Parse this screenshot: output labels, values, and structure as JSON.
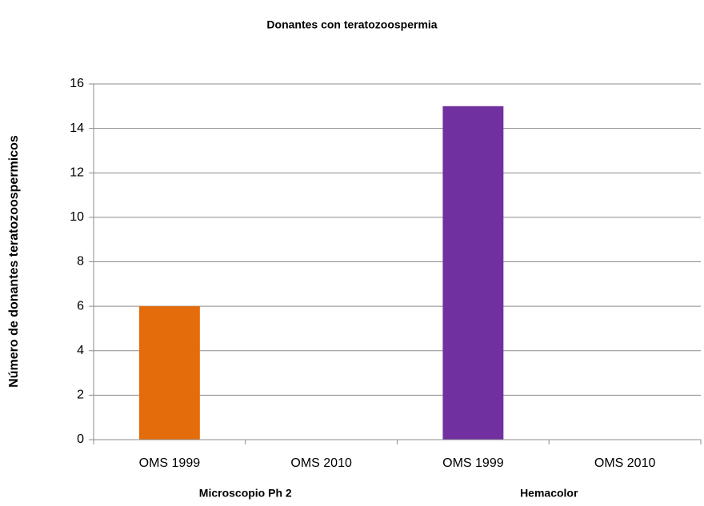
{
  "chart_data": {
    "type": "bar",
    "title": "Donantes con teratozoospermia",
    "y_label": "Número de donantes teratozoospermicos",
    "categories": [
      "OMS 1999",
      "OMS 2010",
      "OMS 1999",
      "OMS 2010"
    ],
    "groups": [
      "Microscopio Ph 2",
      "Hemacolor"
    ],
    "values": [
      6,
      0,
      15,
      0
    ],
    "colors": [
      "#e46c0a",
      null,
      "#7030a0",
      null
    ],
    "ylim": [
      0,
      16
    ],
    "yticks": [
      0,
      2,
      4,
      6,
      8,
      10,
      12,
      14,
      16
    ],
    "grid": true
  }
}
